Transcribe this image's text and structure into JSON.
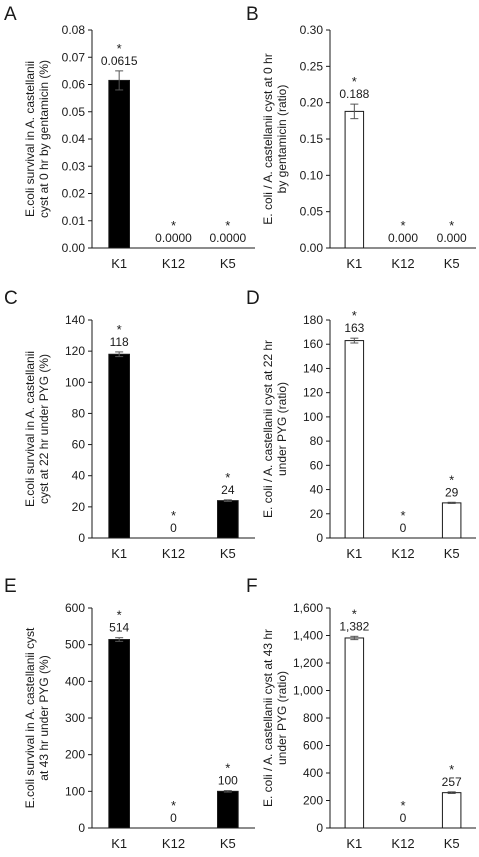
{
  "chart_data": [
    {
      "panel": "A",
      "type": "bar",
      "ylabel": "E.coli survival in A. castellanii cyst at 0 hr by gentamicin (%)",
      "ylabel_lines": [
        "E.coli survival in A. castellanii",
        "cyst at 0 hr by gentamicin (%)"
      ],
      "ylim": [
        0,
        0.08
      ],
      "yticks": [
        "0.00",
        "0.01",
        "0.02",
        "0.03",
        "0.04",
        "0.05",
        "0.06",
        "0.07",
        "0.08"
      ],
      "categories": [
        "K1",
        "K12",
        "K5"
      ],
      "values": [
        0.0615,
        0,
        0
      ],
      "errors": [
        0.0035,
        0,
        0
      ],
      "data_labels": [
        "0.0615",
        "0.0000",
        "0.0000"
      ],
      "significance": [
        "*",
        "*",
        "*"
      ],
      "fill": "#000000"
    },
    {
      "panel": "B",
      "type": "bar",
      "ylabel": "E. coli / A. castellanii cyst at 0 hr by gentamicin (ratio)",
      "ylabel_lines": [
        "E. coli / A. castellanii cyst at 0 hr",
        "by gentamicin (ratio)"
      ],
      "ylim": [
        0,
        0.3
      ],
      "yticks": [
        "0.00",
        "0.05",
        "0.10",
        "0.15",
        "0.20",
        "0.25",
        "0.30"
      ],
      "categories": [
        "K1",
        "K12",
        "K5"
      ],
      "values": [
        0.188,
        0,
        0
      ],
      "errors": [
        0.01,
        0,
        0
      ],
      "data_labels": [
        "0.188",
        "0.000",
        "0.000"
      ],
      "significance": [
        "*",
        "*",
        "*"
      ],
      "fill": "#ffffff"
    },
    {
      "panel": "C",
      "type": "bar",
      "ylabel": "E.coli survival in A. castellanii cyst at 22 hr under PYG (%)",
      "ylabel_lines": [
        "E.coli survival in A. castellanii",
        "cyst at 22 hr under PYG (%)"
      ],
      "ylim": [
        0,
        140
      ],
      "yticks": [
        "0",
        "20",
        "40",
        "60",
        "80",
        "100",
        "120",
        "140"
      ],
      "categories": [
        "K1",
        "K12",
        "K5"
      ],
      "values": [
        118,
        0,
        24
      ],
      "errors": [
        1.5,
        0,
        0.5
      ],
      "data_labels": [
        "118",
        "0",
        "24"
      ],
      "significance": [
        "*",
        "*",
        "*"
      ],
      "fill": "#000000"
    },
    {
      "panel": "D",
      "type": "bar",
      "ylabel": "E. coli / A. castellanii cyst at 22 hr under PYG (ratio)",
      "ylabel_lines": [
        "E. coli / A. castellanii cyst at 22 hr",
        "under PYG (ratio)"
      ],
      "ylim": [
        0,
        180
      ],
      "yticks": [
        "0",
        "20",
        "40",
        "60",
        "80",
        "100",
        "120",
        "140",
        "160",
        "180"
      ],
      "categories": [
        "K1",
        "K12",
        "K5"
      ],
      "values": [
        163,
        0,
        29
      ],
      "errors": [
        2,
        0,
        0.5
      ],
      "data_labels": [
        "163",
        "0",
        "29"
      ],
      "significance": [
        "*",
        "*",
        "*"
      ],
      "fill": "#ffffff"
    },
    {
      "panel": "E",
      "type": "bar",
      "ylabel": "E.coli survival in A. castellanii cyst at 43 hr under PYG (%)",
      "ylabel_lines": [
        "E.coli survival in A. castellanii cyst",
        "at 43 hr under PYG (%)"
      ],
      "ylim": [
        0,
        600
      ],
      "yticks": [
        "0",
        "100",
        "200",
        "300",
        "400",
        "500",
        "600"
      ],
      "categories": [
        "K1",
        "K12",
        "K5"
      ],
      "values": [
        514,
        0,
        100
      ],
      "errors": [
        5,
        0,
        2
      ],
      "data_labels": [
        "514",
        "0",
        "100"
      ],
      "significance": [
        "*",
        "*",
        "*"
      ],
      "fill": "#000000"
    },
    {
      "panel": "F",
      "type": "bar",
      "ylabel": "E. coli / A. castellanii cyst at 43 hr under PYG (ratio)",
      "ylabel_lines": [
        "E. coli / A. castellanii cyst at 43 hr",
        "under PYG (ratio)"
      ],
      "ylim": [
        0,
        1600
      ],
      "yticks": [
        "0",
        "200",
        "400",
        "600",
        "800",
        "1,000",
        "1,200",
        "1,400",
        "1,600"
      ],
      "categories": [
        "K1",
        "K12",
        "K5"
      ],
      "values": [
        1382,
        0,
        257
      ],
      "errors": [
        12,
        0,
        6
      ],
      "data_labels": [
        "1,382",
        "0",
        "257"
      ],
      "significance": [
        "*",
        "*",
        "*"
      ],
      "fill": "#ffffff"
    }
  ]
}
